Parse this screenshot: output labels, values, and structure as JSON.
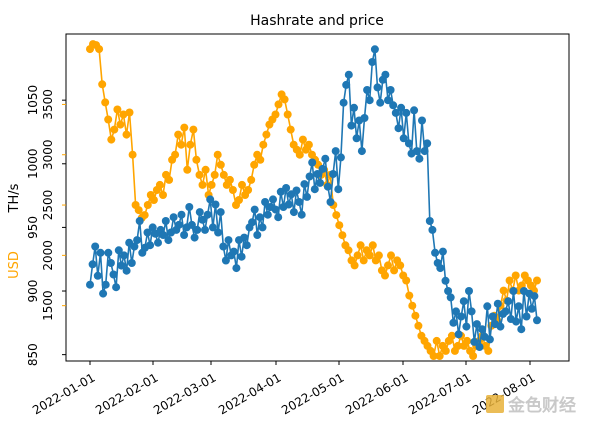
{
  "chart_data": {
    "type": "line",
    "title": "Hashrate and price",
    "x_tick_labels": [
      "2022-01-01",
      "2022-02-01",
      "2022-03-01",
      "2022-04-01",
      "2022-05-01",
      "2022-06-01",
      "2022-07-01",
      "2022-08-01"
    ],
    "y_left": {
      "label": "TH/s",
      "ticks": [
        850,
        900,
        950,
        1000,
        1050
      ],
      "range": [
        845,
        1102
      ]
    },
    "y_right": {
      "label": "USD",
      "ticks": [
        1500,
        2000,
        2500,
        3000,
        3500
      ],
      "range": [
        950,
        4200
      ]
    },
    "grid": false,
    "series": [
      {
        "axis": "left",
        "color": "#1f77b4",
        "values": [
          905,
          921,
          935,
          912,
          930,
          898,
          905,
          930,
          922,
          913,
          903,
          932,
          920,
          928,
          916,
          938,
          922,
          935,
          940,
          955,
          930,
          934,
          946,
          936,
          950,
          945,
          938,
          948,
          944,
          955,
          940,
          946,
          958,
          948,
          952,
          960,
          944,
          950,
          966,
          952,
          942,
          948,
          962,
          956,
          948,
          960,
          972,
          950,
          968,
          946,
          962,
          935,
          924,
          940,
          928,
          931,
          918,
          940,
          927,
          942,
          936,
          950,
          954,
          964,
          944,
          958,
          950,
          970,
          960,
          966,
          972,
          964,
          958,
          978,
          966,
          981,
          968,
          976,
          962,
          979,
          970,
          960,
          984,
          974,
          990,
          1001,
          980,
          992,
          985,
          996,
          1004,
          982,
          970,
          992,
          1010,
          980,
          1005,
          1048,
          1062,
          1070,
          1030,
          1044,
          1020,
          1034,
          1010,
          1036,
          1058,
          1050,
          1080,
          1090,
          1060,
          1048,
          1066,
          1070,
          1050,
          1058,
          1046,
          1040,
          1028,
          1044,
          1020,
          1040,
          1016,
          1008,
          1042,
          1010,
          1004,
          1034,
          1010,
          1016,
          955,
          948,
          930,
          922,
          918,
          931,
          908,
          900,
          895,
          875,
          884,
          866,
          880,
          892,
          872,
          900,
          884,
          860,
          874,
          856,
          870,
          864,
          888,
          862,
          880,
          874,
          890,
          872,
          882,
          884,
          892,
          878,
          900,
          876,
          888,
          870,
          900,
          880,
          898,
          886,
          896,
          877
        ]
      },
      {
        "axis": "right",
        "color": "#ffa500",
        "values": [
          4050,
          4100,
          4090,
          4050,
          3700,
          3520,
          3350,
          3150,
          3250,
          3450,
          3300,
          3400,
          3200,
          3420,
          3000,
          2500,
          2450,
          2370,
          2400,
          2500,
          2600,
          2550,
          2650,
          2700,
          2600,
          2800,
          2750,
          2950,
          3000,
          3200,
          3100,
          3270,
          2850,
          3100,
          3250,
          2950,
          2800,
          2700,
          2850,
          2600,
          2700,
          2800,
          3000,
          2900,
          2800,
          2700,
          2750,
          2650,
          2500,
          2550,
          2700,
          2600,
          2650,
          2750,
          2900,
          3000,
          2950,
          3100,
          3200,
          3300,
          3350,
          3400,
          3500,
          3600,
          3550,
          3400,
          3250,
          3100,
          3050,
          3000,
          3150,
          3050,
          3100,
          3000,
          2950,
          2900,
          2800,
          2850,
          2700,
          2800,
          2500,
          2400,
          2300,
          2200,
          2100,
          2050,
          1950,
          1900,
          2000,
          2100,
          1950,
          2050,
          2000,
          2100,
          1950,
          2000,
          1850,
          1800,
          1900,
          2000,
          1850,
          1950,
          1900,
          1800,
          1750,
          1600,
          1500,
          1400,
          1300,
          1200,
          1150,
          1100,
          1050,
          1000,
          1150,
          1000,
          1100,
          1050,
          1150,
          1200,
          1050,
          1100,
          1200,
          1100,
          1150,
          1050,
          1000,
          1100,
          1150,
          1200,
          1100,
          1050,
          1300,
          1400,
          1350,
          1500,
          1650,
          1550,
          1750,
          1650,
          1800,
          1650,
          1700,
          1800,
          1750,
          1700,
          1650,
          1750
        ]
      }
    ]
  },
  "watermark": "金色财经"
}
